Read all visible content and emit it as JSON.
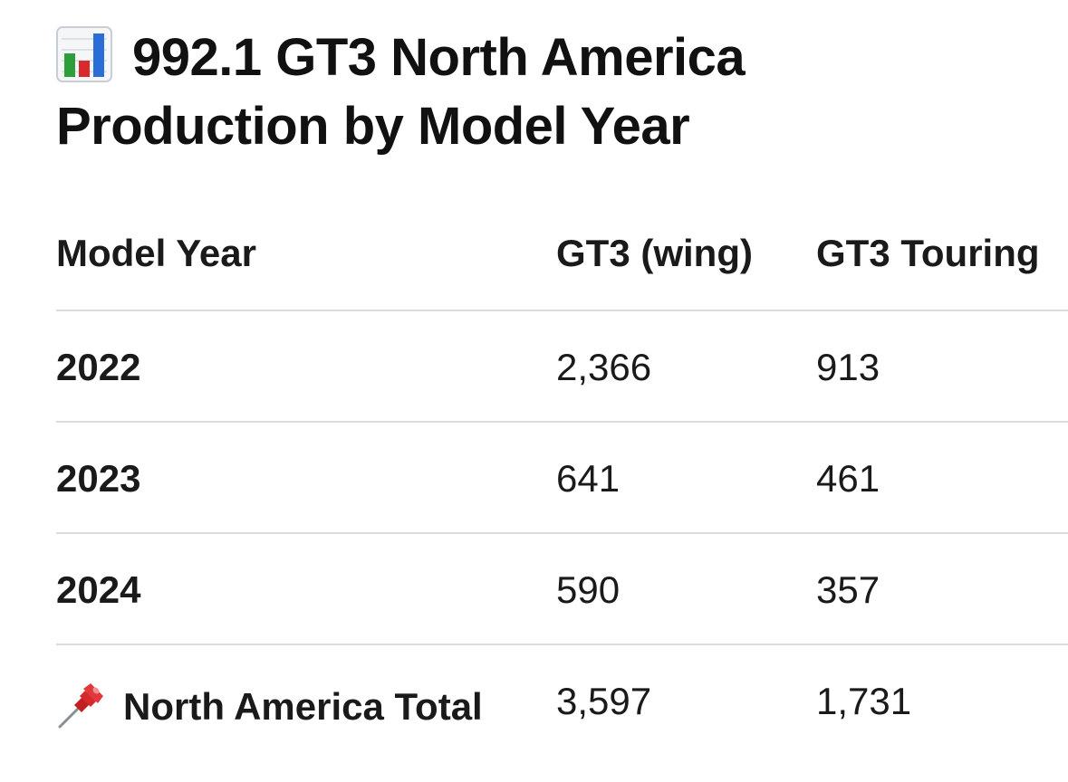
{
  "title": {
    "icon": "bar-chart-icon",
    "text_line1": "992.1 GT3 North America",
    "text_line2": "Production by Model Year"
  },
  "table": {
    "headers": [
      "Model Year",
      "GT3 (wing)",
      "GT3 Touring"
    ],
    "rows": [
      {
        "year": "2022",
        "gt3_wing": "2,366",
        "gt3_touring": "913"
      },
      {
        "year": "2023",
        "gt3_wing": "641",
        "gt3_touring": "461"
      },
      {
        "year": "2024",
        "gt3_wing": "590",
        "gt3_touring": "357"
      }
    ],
    "total": {
      "icon": "pushpin-icon",
      "label": "North America Total",
      "gt3_wing": "3,597",
      "gt3_touring": "1,731"
    }
  },
  "colors": {
    "text": "#111111",
    "divider": "#dcdcdc",
    "bar_green": "#2e9e3a",
    "bar_red": "#d8292c",
    "bar_blue": "#2a6dd6",
    "pin_red": "#d62a2a"
  }
}
